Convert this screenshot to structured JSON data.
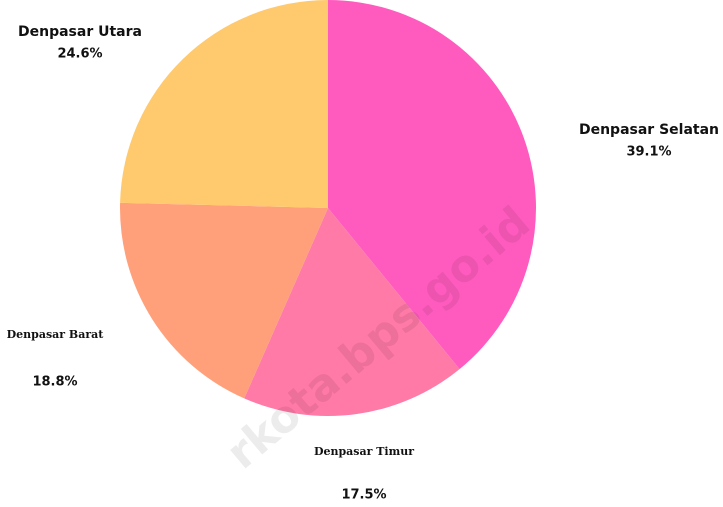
{
  "chart_data": {
    "type": "pie",
    "categories": [
      "Denpasar Selatan",
      "Denpasar Timur",
      "Denpasar Barat",
      "Denpasar Utara"
    ],
    "values": [
      39.1,
      17.5,
      18.8,
      24.6
    ],
    "value_labels": [
      "39.1%",
      "17.5%",
      "18.8%",
      "24.6%"
    ],
    "colors": [
      "#ff5bbf",
      "#ff7aa6",
      "#ffa07a",
      "#ffc96e"
    ],
    "watermark": "rkota.bps.go.id"
  }
}
